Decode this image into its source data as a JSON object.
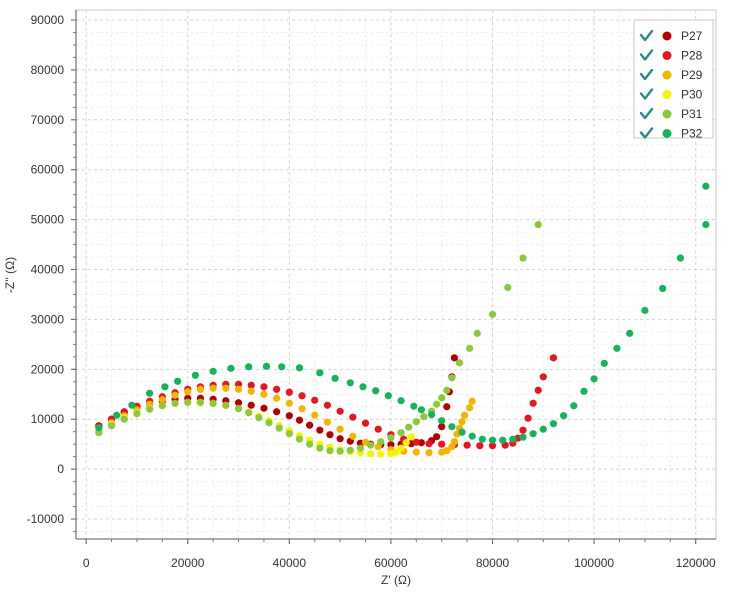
{
  "chart_data": {
    "type": "scatter",
    "xlabel": "Z' (Ω)",
    "ylabel": "-Z'' (Ω)",
    "xlim": [
      -2000,
      124000
    ],
    "ylim": [
      -14000,
      92000
    ],
    "x_ticks": [
      0,
      20000,
      40000,
      60000,
      80000,
      100000,
      120000
    ],
    "y_ticks": [
      -10000,
      0,
      10000,
      20000,
      30000,
      40000,
      50000,
      60000,
      70000,
      80000,
      90000
    ],
    "grid": true,
    "legend_position": "top-right",
    "series": [
      {
        "name": "P27",
        "color": "#b50000",
        "checked": true,
        "points": [
          [
            2500,
            8700
          ],
          [
            5000,
            10000
          ],
          [
            7500,
            11300
          ],
          [
            10000,
            12300
          ],
          [
            12500,
            13000
          ],
          [
            15000,
            13600
          ],
          [
            17500,
            14000
          ],
          [
            20000,
            14200
          ],
          [
            22500,
            14200
          ],
          [
            25000,
            14000
          ],
          [
            27500,
            13700
          ],
          [
            30000,
            13300
          ],
          [
            32500,
            12800
          ],
          [
            35000,
            12200
          ],
          [
            37500,
            11500
          ],
          [
            40000,
            10700
          ],
          [
            42000,
            9800
          ],
          [
            44000,
            8800
          ],
          [
            46000,
            7800
          ],
          [
            48000,
            6900
          ],
          [
            50000,
            6100
          ],
          [
            52000,
            5600
          ],
          [
            54000,
            5200
          ],
          [
            56000,
            5000
          ],
          [
            58000,
            4900
          ],
          [
            60000,
            4900
          ],
          [
            62000,
            5000
          ],
          [
            64000,
            5100
          ],
          [
            66000,
            5300
          ],
          [
            68000,
            5700
          ],
          [
            69000,
            6500
          ],
          [
            70000,
            8500
          ],
          [
            71000,
            12500
          ],
          [
            71500,
            15500
          ],
          [
            72000,
            18500
          ],
          [
            72500,
            22300
          ]
        ]
      },
      {
        "name": "P28",
        "color": "#e8141e",
        "checked": true,
        "points": [
          [
            2500,
            8600
          ],
          [
            5000,
            10000
          ],
          [
            7500,
            11500
          ],
          [
            10000,
            12600
          ],
          [
            12500,
            13600
          ],
          [
            15000,
            14500
          ],
          [
            17500,
            15300
          ],
          [
            20000,
            16000
          ],
          [
            22500,
            16500
          ],
          [
            25000,
            16800
          ],
          [
            27500,
            17000
          ],
          [
            30000,
            17000
          ],
          [
            32500,
            16800
          ],
          [
            35000,
            16500
          ],
          [
            37500,
            16000
          ],
          [
            40000,
            15400
          ],
          [
            42500,
            14700
          ],
          [
            45000,
            13800
          ],
          [
            47500,
            12800
          ],
          [
            50000,
            11600
          ],
          [
            52500,
            10400
          ],
          [
            55000,
            9200
          ],
          [
            57500,
            8000
          ],
          [
            60000,
            6900
          ],
          [
            62500,
            6000
          ],
          [
            65000,
            5400
          ],
          [
            67500,
            5100
          ],
          [
            70000,
            5000
          ],
          [
            72500,
            4900
          ],
          [
            75000,
            4800
          ],
          [
            77500,
            4700
          ],
          [
            80000,
            4700
          ],
          [
            82500,
            4800
          ],
          [
            84000,
            5200
          ],
          [
            85000,
            6200
          ],
          [
            86000,
            7800
          ],
          [
            87000,
            10200
          ],
          [
            88000,
            13200
          ],
          [
            89000,
            15800
          ],
          [
            90000,
            18500
          ],
          [
            92000,
            22300
          ]
        ]
      },
      {
        "name": "P29",
        "color": "#f5b400",
        "checked": true,
        "points": [
          [
            2500,
            7800
          ],
          [
            5000,
            9300
          ],
          [
            7500,
            10700
          ],
          [
            10000,
            11900
          ],
          [
            12500,
            13000
          ],
          [
            15000,
            13900
          ],
          [
            17500,
            14800
          ],
          [
            20000,
            15500
          ],
          [
            22500,
            16000
          ],
          [
            25000,
            16200
          ],
          [
            27500,
            16200
          ],
          [
            30000,
            16000
          ],
          [
            32500,
            15600
          ],
          [
            35000,
            15000
          ],
          [
            37500,
            14200
          ],
          [
            40000,
            13200
          ],
          [
            42500,
            12100
          ],
          [
            45000,
            10800
          ],
          [
            47500,
            9400
          ],
          [
            50000,
            8000
          ],
          [
            52500,
            6600
          ],
          [
            55000,
            5400
          ],
          [
            57500,
            4500
          ],
          [
            60000,
            3900
          ],
          [
            62500,
            3600
          ],
          [
            65000,
            3400
          ],
          [
            67500,
            3300
          ],
          [
            70000,
            3400
          ],
          [
            71000,
            3700
          ],
          [
            72000,
            4500
          ],
          [
            72500,
            5500
          ],
          [
            73000,
            7000
          ],
          [
            73500,
            8200
          ],
          [
            74000,
            9500
          ],
          [
            74500,
            10800
          ],
          [
            75500,
            12300
          ],
          [
            76000,
            13600
          ]
        ]
      },
      {
        "name": "P30",
        "color": "#f5f500",
        "checked": true,
        "points": [
          [
            2500,
            7600
          ],
          [
            5000,
            9000
          ],
          [
            7500,
            10300
          ],
          [
            10000,
            11300
          ],
          [
            12500,
            12100
          ],
          [
            15000,
            12700
          ],
          [
            17500,
            13100
          ],
          [
            20000,
            13300
          ],
          [
            22500,
            13300
          ],
          [
            25000,
            13100
          ],
          [
            27500,
            12700
          ],
          [
            30000,
            12100
          ],
          [
            32000,
            11400
          ],
          [
            34000,
            10600
          ],
          [
            36000,
            9700
          ],
          [
            38000,
            8700
          ],
          [
            40000,
            7700
          ],
          [
            42000,
            6700
          ],
          [
            44000,
            5800
          ],
          [
            46000,
            5000
          ],
          [
            48000,
            4400
          ],
          [
            50000,
            3900
          ],
          [
            52000,
            3500
          ],
          [
            54000,
            3300
          ],
          [
            56000,
            3100
          ],
          [
            58000,
            3000
          ],
          [
            60000,
            3100
          ],
          [
            61000,
            3400
          ],
          [
            62000,
            4200
          ],
          [
            63000,
            5300
          ],
          [
            64000,
            6500
          ]
        ]
      },
      {
        "name": "P31",
        "color": "#8cc83c",
        "checked": true,
        "points": [
          [
            2500,
            7300
          ],
          [
            5000,
            8700
          ],
          [
            7500,
            10000
          ],
          [
            10000,
            11100
          ],
          [
            12500,
            12000
          ],
          [
            15000,
            12700
          ],
          [
            17500,
            13200
          ],
          [
            20000,
            13400
          ],
          [
            22500,
            13400
          ],
          [
            25000,
            13200
          ],
          [
            27500,
            12800
          ],
          [
            30000,
            12100
          ],
          [
            32000,
            11300
          ],
          [
            34000,
            10300
          ],
          [
            36000,
            9300
          ],
          [
            38000,
            8200
          ],
          [
            40000,
            7100
          ],
          [
            42000,
            6000
          ],
          [
            44000,
            5000
          ],
          [
            46000,
            4200
          ],
          [
            48000,
            3700
          ],
          [
            50000,
            3600
          ],
          [
            52000,
            3800
          ],
          [
            54000,
            4200
          ],
          [
            56000,
            4800
          ],
          [
            58000,
            5500
          ],
          [
            60000,
            6300
          ],
          [
            62000,
            7300
          ],
          [
            63500,
            8400
          ],
          [
            65000,
            9500
          ],
          [
            66500,
            10500
          ],
          [
            68000,
            11600
          ],
          [
            69000,
            13000
          ],
          [
            70000,
            14300
          ],
          [
            71000,
            15800
          ],
          [
            72000,
            18300
          ],
          [
            73500,
            21300
          ],
          [
            75500,
            24200
          ],
          [
            77000,
            27200
          ],
          [
            80000,
            31000
          ],
          [
            83000,
            36400
          ],
          [
            86000,
            42300
          ],
          [
            89000,
            49000
          ]
        ]
      },
      {
        "name": "P32",
        "color": "#14b45a",
        "checked": true,
        "points": [
          [
            2500,
            8300
          ],
          [
            6000,
            10800
          ],
          [
            9000,
            12800
          ],
          [
            12500,
            15200
          ],
          [
            15500,
            16500
          ],
          [
            18000,
            17600
          ],
          [
            21500,
            18800
          ],
          [
            25000,
            19600
          ],
          [
            28500,
            20200
          ],
          [
            32000,
            20500
          ],
          [
            35500,
            20600
          ],
          [
            38500,
            20500
          ],
          [
            42000,
            20300
          ],
          [
            46000,
            19300
          ],
          [
            49000,
            18200
          ],
          [
            52000,
            17300
          ],
          [
            54500,
            16500
          ],
          [
            57000,
            15700
          ],
          [
            59500,
            14700
          ],
          [
            62000,
            13700
          ],
          [
            64500,
            12600
          ],
          [
            66000,
            11900
          ],
          [
            68000,
            10900
          ],
          [
            70000,
            9700
          ],
          [
            72000,
            8500
          ],
          [
            74000,
            7400
          ],
          [
            76000,
            6600
          ],
          [
            78000,
            6000
          ],
          [
            80000,
            5800
          ],
          [
            82000,
            5800
          ],
          [
            84000,
            6000
          ],
          [
            86000,
            6400
          ],
          [
            88000,
            7100
          ],
          [
            90000,
            8000
          ],
          [
            92000,
            9100
          ],
          [
            94000,
            10700
          ],
          [
            96000,
            12700
          ],
          [
            98000,
            15600
          ],
          [
            100000,
            18100
          ],
          [
            102000,
            21200
          ],
          [
            104500,
            24200
          ],
          [
            107000,
            27200
          ],
          [
            110000,
            31800
          ],
          [
            113500,
            36200
          ],
          [
            117000,
            42300
          ],
          [
            122000,
            49000
          ],
          [
            122000,
            56700
          ]
        ]
      }
    ]
  }
}
